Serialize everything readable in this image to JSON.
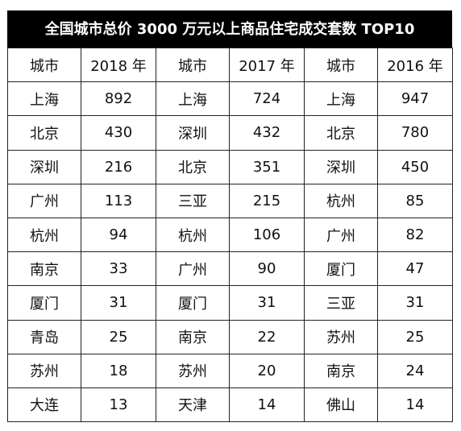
{
  "title": "全国城市总价 3000 万元以上商品住宅成交套数 TOP10",
  "headers": [
    "城市",
    "2018 年",
    "城市",
    "2017 年",
    "城市",
    "2016 年"
  ],
  "rows": [
    [
      "上海",
      "892",
      "上海",
      "724",
      "上海",
      "947"
    ],
    [
      "北京",
      "430",
      "深圳",
      "432",
      "北京",
      "780"
    ],
    [
      "深圳",
      "216",
      "北京",
      "351",
      "深圳",
      "450"
    ],
    [
      "广州",
      "113",
      "三亚",
      "215",
      "杭州",
      "85"
    ],
    [
      "杭州",
      "94",
      "杭州",
      "106",
      "广州",
      "82"
    ],
    [
      "南京",
      "33",
      "广州",
      "90",
      "厦门",
      "47"
    ],
    [
      "厦门",
      "31",
      "厦门",
      "31",
      "三亚",
      "31"
    ],
    [
      "青岛",
      "25",
      "南京",
      "22",
      "苏州",
      "25"
    ],
    [
      "苏州",
      "18",
      "苏州",
      "20",
      "南京",
      "24"
    ],
    [
      "大连",
      "13",
      "天津",
      "14",
      "佛山",
      "14"
    ]
  ]
}
